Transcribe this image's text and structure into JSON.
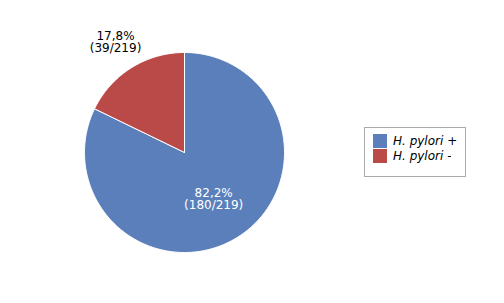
{
  "chart_data": {
    "type": "pie",
    "categories": [
      "H. pylori +",
      "H. pylori -"
    ],
    "values": [
      82.2,
      17.8
    ],
    "value_labels": [
      "82,2%\n(180/219)",
      "17,8%\n(39/219)"
    ],
    "colors": [
      "#5b7fbb",
      "#b94a48"
    ],
    "data_labels": true,
    "legend": "right"
  }
}
